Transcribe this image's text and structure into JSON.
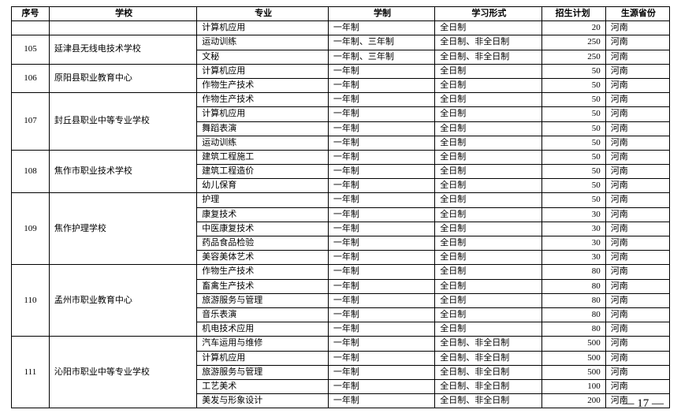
{
  "headers": {
    "num": "序号",
    "school": "学校",
    "major": "专业",
    "system": "学制",
    "mode": "学习形式",
    "plan": "招生计划",
    "province": "生源省份"
  },
  "groups": [
    {
      "num": "",
      "school": "",
      "prefixRows": [
        {
          "major": "计算机应用",
          "system": "一年制",
          "mode": "全日制",
          "plan": "20",
          "province": "河南"
        }
      ],
      "rows": []
    },
    {
      "num": "105",
      "school": "延津县无线电技术学校",
      "prefixRows": [],
      "rows": [
        {
          "major": "运动训练",
          "system": "一年制、三年制",
          "mode": "全日制、非全日制",
          "plan": "250",
          "province": "河南"
        },
        {
          "major": "文秘",
          "system": "一年制、三年制",
          "mode": "全日制、非全日制",
          "plan": "250",
          "province": "河南"
        }
      ]
    },
    {
      "num": "106",
      "school": "原阳县职业教育中心",
      "prefixRows": [],
      "rows": [
        {
          "major": "计算机应用",
          "system": "一年制",
          "mode": "全日制",
          "plan": "50",
          "province": "河南"
        },
        {
          "major": "作物生产技术",
          "system": "一年制",
          "mode": "全日制",
          "plan": "50",
          "province": "河南"
        }
      ]
    },
    {
      "num": "107",
      "school": "封丘县职业中等专业学校",
      "prefixRows": [],
      "rows": [
        {
          "major": "作物生产技术",
          "system": "一年制",
          "mode": "全日制",
          "plan": "50",
          "province": "河南"
        },
        {
          "major": "计算机应用",
          "system": "一年制",
          "mode": "全日制",
          "plan": "50",
          "province": "河南"
        },
        {
          "major": "舞蹈表演",
          "system": "一年制",
          "mode": "全日制",
          "plan": "50",
          "province": "河南"
        },
        {
          "major": "运动训练",
          "system": "一年制",
          "mode": "全日制",
          "plan": "50",
          "province": "河南"
        }
      ]
    },
    {
      "num": "108",
      "school": "焦作市职业技术学校",
      "prefixRows": [],
      "rows": [
        {
          "major": "建筑工程施工",
          "system": "一年制",
          "mode": "全日制",
          "plan": "50",
          "province": "河南"
        },
        {
          "major": "建筑工程造价",
          "system": "一年制",
          "mode": "全日制",
          "plan": "50",
          "province": "河南"
        },
        {
          "major": "幼儿保育",
          "system": "一年制",
          "mode": "全日制",
          "plan": "50",
          "province": "河南"
        }
      ]
    },
    {
      "num": "109",
      "school": "焦作护理学校",
      "prefixRows": [],
      "rows": [
        {
          "major": "护理",
          "system": "一年制",
          "mode": "全日制",
          "plan": "50",
          "province": "河南"
        },
        {
          "major": "康复技术",
          "system": "一年制",
          "mode": "全日制",
          "plan": "30",
          "province": "河南"
        },
        {
          "major": "中医康复技术",
          "system": "一年制",
          "mode": "全日制",
          "plan": "30",
          "province": "河南"
        },
        {
          "major": "药品食品检验",
          "system": "一年制",
          "mode": "全日制",
          "plan": "30",
          "province": "河南"
        },
        {
          "major": "美容美体艺术",
          "system": "一年制",
          "mode": "全日制",
          "plan": "30",
          "province": "河南"
        }
      ]
    },
    {
      "num": "110",
      "school": "孟州市职业教育中心",
      "prefixRows": [],
      "rows": [
        {
          "major": "作物生产技术",
          "system": "一年制",
          "mode": "全日制",
          "plan": "80",
          "province": "河南"
        },
        {
          "major": "畜禽生产技术",
          "system": "一年制",
          "mode": "全日制",
          "plan": "80",
          "province": "河南"
        },
        {
          "major": "旅游服务与管理",
          "system": "一年制",
          "mode": "全日制",
          "plan": "80",
          "province": "河南"
        },
        {
          "major": "音乐表演",
          "system": "一年制",
          "mode": "全日制",
          "plan": "80",
          "province": "河南"
        },
        {
          "major": "机电技术应用",
          "system": "一年制",
          "mode": "全日制",
          "plan": "80",
          "province": "河南"
        }
      ]
    },
    {
      "num": "111",
      "school": "沁阳市职业中等专业学校",
      "prefixRows": [],
      "rows": [
        {
          "major": "汽车运用与维修",
          "system": "一年制",
          "mode": "全日制、非全日制",
          "plan": "500",
          "province": "河南"
        },
        {
          "major": "计算机应用",
          "system": "一年制",
          "mode": "全日制、非全日制",
          "plan": "500",
          "province": "河南"
        },
        {
          "major": "旅游服务与管理",
          "system": "一年制",
          "mode": "全日制、非全日制",
          "plan": "500",
          "province": "河南"
        },
        {
          "major": "工艺美术",
          "system": "一年制",
          "mode": "全日制、非全日制",
          "plan": "100",
          "province": "河南"
        },
        {
          "major": "美发与形象设计",
          "system": "一年制",
          "mode": "全日制、非全日制",
          "plan": "200",
          "province": "河南"
        }
      ]
    }
  ],
  "pageNumber": "— 17 —"
}
